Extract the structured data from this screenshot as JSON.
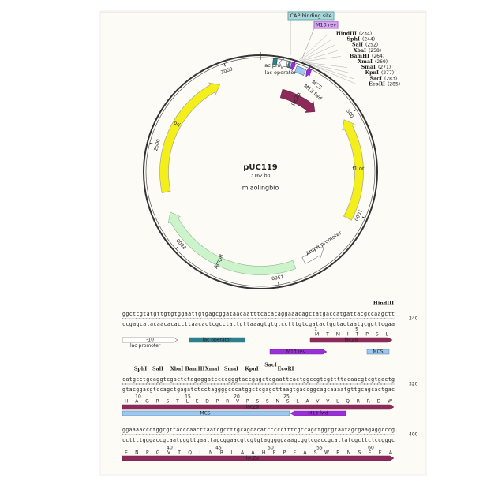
{
  "map": {
    "name": "pUC119",
    "size": "3162 bp",
    "source": "miaolingbio",
    "ticks": [
      500,
      1000,
      1500,
      2000,
      2500,
      3000
    ],
    "features": {
      "cap": "CAP binding site",
      "m13rev": "M13 rev",
      "lac_promoter": "lac promoter",
      "lac_operator": "lac operator",
      "mcs": "MCS",
      "m13fwd": "M13 fwd",
      "lacz": "lacZα",
      "ori": "ori",
      "f1ori": "f1 ori",
      "ampr": "AmpR",
      "ampr_promoter": "AmpR promoter"
    },
    "enzymes": [
      {
        "name": "HindIII",
        "site": "(234)"
      },
      {
        "name": "SphI",
        "site": "(244)"
      },
      {
        "name": "SalI",
        "site": "(252)"
      },
      {
        "name": "XbaI",
        "site": "(258)"
      },
      {
        "name": "BamHI",
        "site": "(264)"
      },
      {
        "name": "XmaI",
        "site": "(269)"
      },
      {
        "name": "SmaI",
        "site": "(271)"
      },
      {
        "name": "KpnI",
        "site": "(277)"
      },
      {
        "name": "SacI",
        "site": "(283)"
      },
      {
        "name": "EcoRI",
        "site": "(285)"
      }
    ]
  },
  "sequence": {
    "blocks": [
      {
        "top": "ggctcgtatgttgtgtggaattgtgagcggataacaatttcacacaggaaacagctatgaccatgattacgccaagctt",
        "bottom": "ccgagcatacaacacaccttaacactcgcctattgttaaagtgtgtcctttgtcgatactggtactaatgcggttcgaa",
        "end": 240,
        "aa": "M T M I T P S L",
        "aa_numbers": [
          1,
          5
        ],
        "promoter_box": "-10",
        "lac_promoter": "lac promoter",
        "lac_operator": "lac operator",
        "m13rev": "M13 rev",
        "mcs": "MCS",
        "lacz": "lacZα"
      },
      {
        "top": "catgcctgcaggtcgactctagaggatccccgggtaccgagctcgaattcactggccgtcgttttacaacgtcgtgactg",
        "bottom": "gtacggacgtccagctgagatctcctaggggcccatggctcgagcttaagtgaccggcagcaaaatgttgcagcactgac",
        "end": 320,
        "aa": "H A G R S T L E D P R V P S S N S L A V V L Q R R D W",
        "aa_numbers": [
          10,
          15,
          20,
          25
        ],
        "lacz": "lacZα",
        "mcs": "MCS",
        "m13fwd": "M13 fwd"
      },
      {
        "top": "ggaaaaccctggcgttacccaacttaatcgccttgcagcacatccccctttcgccagctggcgtaatagcgaagaggcccg",
        "bottom": "ccttttgggaccgcaatgggttgaattagcggaacgtcgtgtagggggaaagcggtcgaccgcattatcgcttctccgggc",
        "end": 400,
        "aa": "E N P G V T Q L N R L A A H P P F A S W R N S E E A",
        "aa_numbers": [
          40,
          45,
          50,
          55,
          60
        ],
        "lacz": "lacZα"
      }
    ]
  }
}
